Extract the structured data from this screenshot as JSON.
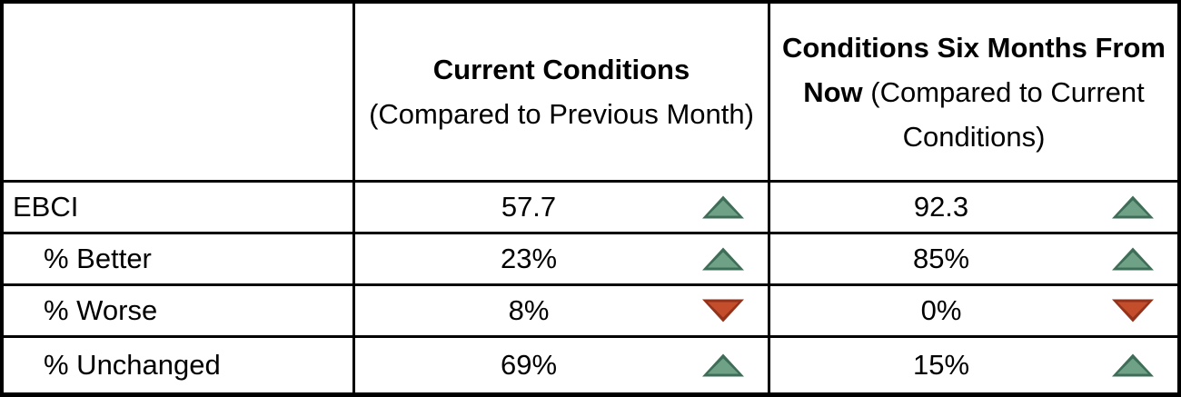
{
  "table": {
    "corner_label": "",
    "columns": [
      {
        "title_bold": "Current Conditions",
        "title_rest": "(Compared to Previous Month)"
      },
      {
        "title_bold": "Conditions Six Months From Now",
        "title_rest": "(Compared to Current Conditions)"
      }
    ],
    "rows": [
      {
        "label": "EBCI",
        "current": {
          "value": "57.7",
          "trend": "up"
        },
        "future": {
          "value": "92.3",
          "trend": "up"
        }
      },
      {
        "label": "% Better",
        "current": {
          "value": "23%",
          "trend": "up"
        },
        "future": {
          "value": "85%",
          "trend": "up"
        }
      },
      {
        "label": "% Worse",
        "current": {
          "value": "8%",
          "trend": "down"
        },
        "future": {
          "value": "0%",
          "trend": "down"
        }
      },
      {
        "label": "% Unchanged",
        "current": {
          "value": "69%",
          "trend": "up"
        },
        "future": {
          "value": "15%",
          "trend": "up"
        }
      }
    ]
  },
  "icons": {
    "up": "up-triangle-icon",
    "down": "down-triangle-icon"
  },
  "colors": {
    "background": "#FFFFFF",
    "text_color": "#000000",
    "border_color": "#000000",
    "up_arrow_fill": "#6FA187",
    "up_arrow_border": "#3F6E58",
    "down_arrow_fill": "#C44D2C",
    "down_arrow_border": "#93331B"
  }
}
